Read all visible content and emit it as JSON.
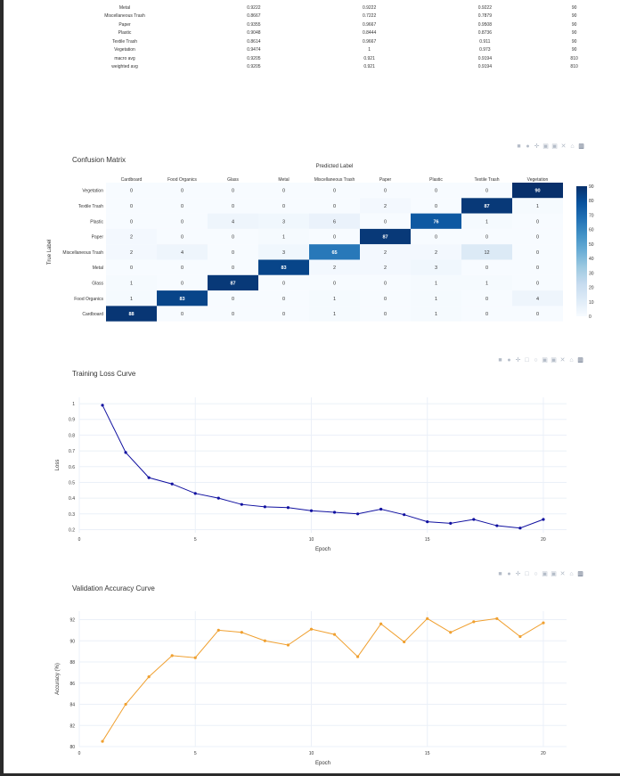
{
  "report": {
    "rows": [
      {
        "label": "Metal",
        "precision": "0.9222",
        "recall": "0.9222",
        "f1": "0.9222",
        "support": "90"
      },
      {
        "label": "Miscellaneous Trash",
        "precision": "0.8667",
        "recall": "0.7222",
        "f1": "0.7879",
        "support": "90"
      },
      {
        "label": "Paper",
        "precision": "0.9355",
        "recall": "0.9667",
        "f1": "0.9508",
        "support": "90"
      },
      {
        "label": "Plastic",
        "precision": "0.9048",
        "recall": "0.8444",
        "f1": "0.8736",
        "support": "90"
      },
      {
        "label": "Textile Trash",
        "precision": "0.8614",
        "recall": "0.9667",
        "f1": "0.911",
        "support": "90"
      },
      {
        "label": "Vegetation",
        "precision": "0.9474",
        "recall": "1",
        "f1": "0.973",
        "support": "90"
      },
      {
        "label": "macro avg",
        "precision": "0.9205",
        "recall": "0.921",
        "f1": "0.9194",
        "support": "810"
      },
      {
        "label": "weighted avg",
        "precision": "0.9205",
        "recall": "0.921",
        "f1": "0.9194",
        "support": "810"
      }
    ]
  },
  "modebar_icons": [
    "camera-icon",
    "zoom-icon",
    "pan-icon",
    "box-select-icon",
    "lasso-icon",
    "zoom-in-icon",
    "zoom-out-icon",
    "autoscale-icon",
    "home-icon",
    "plotly-logo-icon"
  ],
  "chart_data": [
    {
      "type": "heatmap",
      "title": "Confusion Matrix",
      "xlabel": "Predicted Label",
      "ylabel": "True Label",
      "x_categories": [
        "Cardboard",
        "Food Organics",
        "Glass",
        "Metal",
        "Miscellaneous Trash",
        "Paper",
        "Plastic",
        "Textile Trash",
        "Vegetation"
      ],
      "y_categories": [
        "Vegetation",
        "Textile Trash",
        "Plastic",
        "Paper",
        "Miscellaneous Trash",
        "Metal",
        "Glass",
        "Food Organics",
        "Cardboard"
      ],
      "z": [
        [
          0,
          0,
          0,
          0,
          0,
          0,
          0,
          0,
          90
        ],
        [
          0,
          0,
          0,
          0,
          0,
          2,
          0,
          87,
          1
        ],
        [
          0,
          0,
          4,
          3,
          6,
          0,
          76,
          1,
          0
        ],
        [
          2,
          0,
          0,
          1,
          0,
          87,
          0,
          0,
          0
        ],
        [
          2,
          4,
          0,
          3,
          65,
          2,
          2,
          12,
          0
        ],
        [
          0,
          0,
          0,
          83,
          2,
          2,
          3,
          0,
          0
        ],
        [
          1,
          0,
          87,
          0,
          0,
          0,
          1,
          1,
          0
        ],
        [
          1,
          83,
          0,
          0,
          1,
          0,
          1,
          0,
          4
        ],
        [
          88,
          0,
          0,
          0,
          1,
          0,
          1,
          0,
          0
        ]
      ],
      "zrange": [
        0,
        90
      ],
      "colorbar_ticks": [
        "90",
        "80",
        "70",
        "60",
        "50",
        "40",
        "30",
        "20",
        "10",
        "0"
      ],
      "colorscale": "Blues"
    },
    {
      "type": "line",
      "title": "Training Loss Curve",
      "xlabel": "Epoch",
      "ylabel": "Loss",
      "color": "#1010a0",
      "x": [
        1,
        2,
        3,
        4,
        5,
        6,
        7,
        8,
        9,
        10,
        11,
        12,
        13,
        14,
        15,
        16,
        17,
        18,
        19,
        20
      ],
      "y": [
        0.99,
        0.69,
        0.53,
        0.49,
        0.43,
        0.4,
        0.36,
        0.345,
        0.34,
        0.32,
        0.31,
        0.3,
        0.33,
        0.295,
        0.25,
        0.24,
        0.265,
        0.225,
        0.21,
        0.265
      ],
      "xlim": [
        0,
        21
      ],
      "ylim": [
        0.18,
        1.04
      ],
      "xticks": [
        "0",
        "5",
        "10",
        "15",
        "20"
      ],
      "yticks": [
        "1",
        "0.9",
        "0.8",
        "0.7",
        "0.6",
        "0.5",
        "0.4",
        "0.3",
        "0.2"
      ]
    },
    {
      "type": "line",
      "title": "Validation Accuracy Curve",
      "xlabel": "Epoch",
      "ylabel": "Accuracy (%)",
      "color": "#f0a030",
      "x": [
        1,
        2,
        3,
        4,
        5,
        6,
        7,
        8,
        9,
        10,
        11,
        12,
        13,
        14,
        15,
        16,
        17,
        18,
        19,
        20
      ],
      "y": [
        80.5,
        84.0,
        86.6,
        88.6,
        88.4,
        91.0,
        90.8,
        90.0,
        89.6,
        91.1,
        90.6,
        88.5,
        91.6,
        89.9,
        92.1,
        90.8,
        91.8,
        92.1,
        90.4,
        91.7
      ],
      "xlim": [
        0,
        21
      ],
      "ylim": [
        80,
        92.8
      ],
      "xticks": [
        "0",
        "5",
        "10",
        "15",
        "20"
      ],
      "yticks": [
        "92",
        "90",
        "88",
        "86",
        "84",
        "82",
        "80"
      ]
    }
  ]
}
